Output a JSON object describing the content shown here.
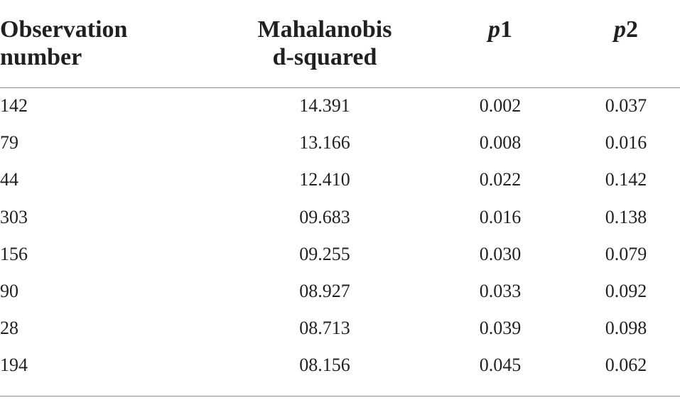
{
  "table": {
    "headers": {
      "observation": [
        "Observation",
        "number"
      ],
      "mahalanobis": [
        "Mahalanobis",
        "d-squared"
      ],
      "p1": {
        "var": "p",
        "sub": "1"
      },
      "p2": {
        "var": "p",
        "sub": "2"
      }
    },
    "rows": [
      {
        "observation": "142",
        "d2": "14.391",
        "p1": "0.002",
        "p2": "0.037"
      },
      {
        "observation": "79",
        "d2": "13.166",
        "p1": "0.008",
        "p2": "0.016"
      },
      {
        "observation": "44",
        "d2": "12.410",
        "p1": "0.022",
        "p2": "0.142"
      },
      {
        "observation": "303",
        "d2": "09.683",
        "p1": "0.016",
        "p2": "0.138"
      },
      {
        "observation": "156",
        "d2": "09.255",
        "p1": "0.030",
        "p2": "0.079"
      },
      {
        "observation": "90",
        "d2": "08.927",
        "p1": "0.033",
        "p2": "0.092"
      },
      {
        "observation": "28",
        "d2": "08.713",
        "p1": "0.039",
        "p2": "0.098"
      },
      {
        "observation": "194",
        "d2": "08.156",
        "p1": "0.045",
        "p2": "0.062"
      }
    ]
  }
}
